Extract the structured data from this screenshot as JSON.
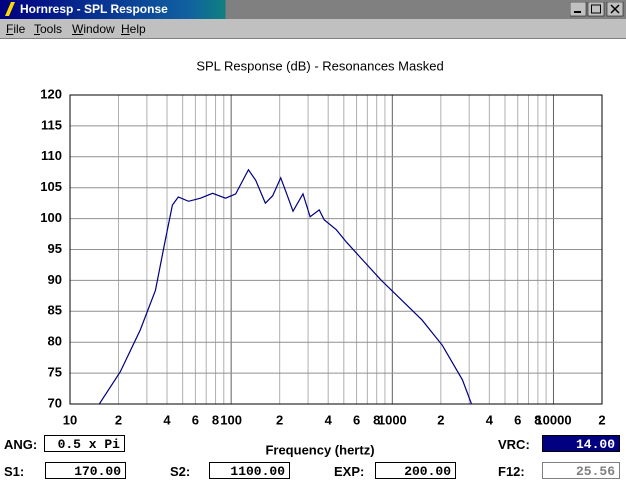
{
  "window": {
    "title": "Hornresp - SPL Response",
    "menu": [
      "File",
      "Tools",
      "Window",
      "Help"
    ]
  },
  "chart_data": {
    "type": "line",
    "title": "SPL Response (dB) - Resonances Masked",
    "x_label": "Frequency (hertz)",
    "x_scale": "log",
    "grid": true,
    "xlim": [
      10,
      20000
    ],
    "ylim": [
      70,
      120
    ],
    "xticks": [
      10,
      {
        "value": 20,
        "label": "2"
      },
      {
        "value": 40,
        "label": "4"
      },
      {
        "value": 60,
        "label": "6"
      },
      {
        "value": 80,
        "label": "8"
      },
      100,
      {
        "value": 200,
        "label": "2"
      },
      {
        "value": 400,
        "label": "4"
      },
      {
        "value": 600,
        "label": "6"
      },
      {
        "value": 800,
        "label": "8"
      },
      1000,
      {
        "value": 2000,
        "label": "2"
      },
      {
        "value": 4000,
        "label": "4"
      },
      {
        "value": 6000,
        "label": "6"
      },
      {
        "value": 8000,
        "label": "8"
      },
      10000,
      {
        "value": 20000,
        "label": "2"
      }
    ],
    "xminor_ticks": [
      30,
      50,
      70,
      90,
      300,
      500,
      700,
      900,
      3000,
      5000,
      7000,
      9000
    ],
    "yticks": [
      70,
      75,
      80,
      85,
      90,
      95,
      100,
      105,
      110,
      115,
      120
    ],
    "series": [
      {
        "name": "SPL",
        "color": "#000080",
        "x": [
          15.2,
          20.5,
          27.3,
          33.9,
          39.0,
          43.2,
          47.0,
          54.4,
          64.5,
          76.7,
          92.3,
          106.7,
          128,
          142,
          163,
          181,
          203,
          219,
          242,
          279,
          309,
          352,
          378,
          449,
          519,
          639,
          855,
          1144,
          1528,
          2043,
          2724,
          3100
        ],
        "values": [
          70,
          75.2,
          82,
          88.4,
          96.5,
          102.2,
          103.5,
          102.8,
          103.3,
          104.1,
          103.3,
          104,
          107.9,
          106.2,
          102.5,
          103.7,
          106.6,
          104.3,
          101.2,
          104,
          100.3,
          101.4,
          99.8,
          98.2,
          96.2,
          93.6,
          90,
          86.8,
          83.6,
          79.5,
          73.9,
          70
        ]
      }
    ]
  },
  "fields": [
    {
      "label": "ANG:",
      "value": "0.5 x Pi"
    },
    {
      "label": "VRC:",
      "value": "14.00"
    },
    {
      "label": "S1:",
      "value": "170.00"
    },
    {
      "label": "S2:",
      "value": "1100.00"
    },
    {
      "label": "EXP:",
      "value": "200.00"
    },
    {
      "label": "F12:",
      "value": "25.56"
    }
  ]
}
